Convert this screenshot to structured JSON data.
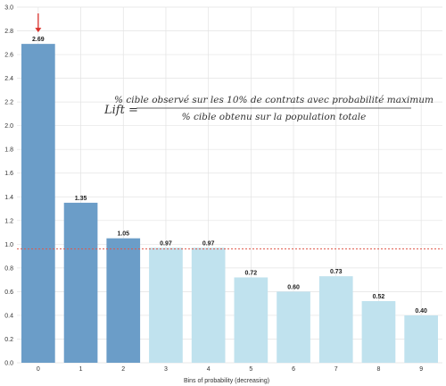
{
  "chart_data": {
    "type": "bar",
    "categories": [
      "0",
      "1",
      "2",
      "3",
      "4",
      "5",
      "6",
      "7",
      "8",
      "9"
    ],
    "values": [
      2.69,
      1.35,
      1.05,
      0.97,
      0.97,
      0.72,
      0.6,
      0.73,
      0.52,
      0.4
    ],
    "value_labels": [
      "2.69",
      "1.35",
      "1.05",
      "0.97",
      "0.97",
      "0.72",
      "0.60",
      "0.73",
      "0.52",
      "0.40"
    ],
    "highlighted_bins": [
      0,
      1,
      2
    ],
    "xlabel": "Bins of probability (decreasing)",
    "ylabel": "",
    "ylim": [
      0,
      3.0
    ],
    "yticks": [
      "0.0",
      "0.2",
      "0.4",
      "0.6",
      "0.8",
      "1.0",
      "1.2",
      "1.4",
      "1.6",
      "1.8",
      "2.0",
      "2.2",
      "2.4",
      "2.6",
      "2.8",
      "3.0"
    ],
    "reference_line": 0.96,
    "arrow_bin": 0,
    "grid": true,
    "colors": {
      "highlight": "#6b9dc8",
      "normal": "#c0e2ee",
      "reference_line": "#e0574a",
      "arrow": "#d9312b",
      "grid": "#e3e3e3"
    },
    "formula": {
      "lhs": "Lift =",
      "numerator": "% cible observé sur les 10% de contrats avec probabilité maximum",
      "denominator": "% cible obtenu sur la population totale"
    }
  }
}
